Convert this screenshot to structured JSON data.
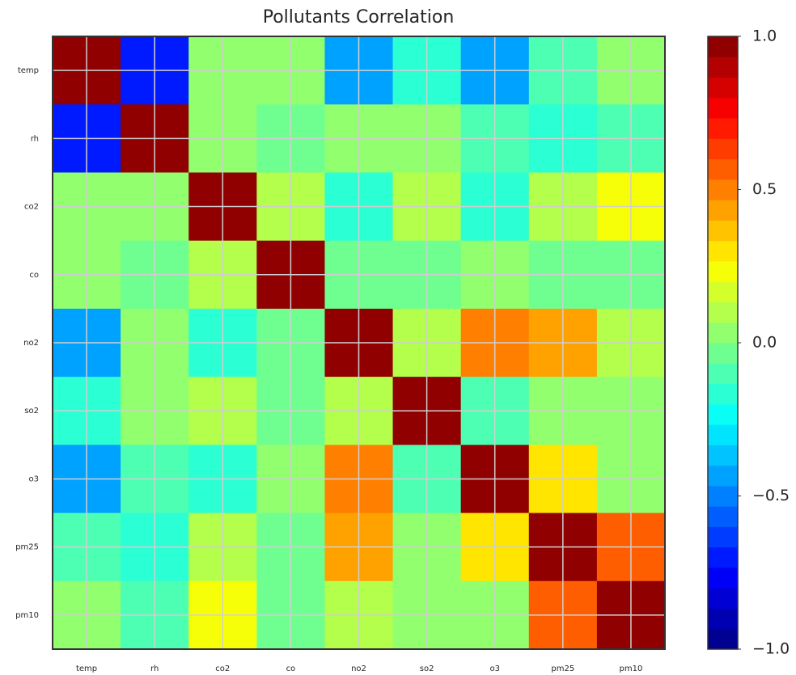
{
  "chart_data": {
    "type": "heatmap",
    "title": "Pollutants Correlation",
    "categories": [
      "temp",
      "rh",
      "co2",
      "co",
      "no2",
      "so2",
      "o3",
      "pm25",
      "pm10"
    ],
    "values": [
      [
        1,
        -0.72,
        0.05,
        0.05,
        -0.45,
        -0.15,
        -0.45,
        -0.08,
        0.0
      ],
      [
        -0.72,
        1,
        0.05,
        -0.03,
        0.05,
        0.05,
        -0.08,
        -0.2,
        -0.1
      ],
      [
        0.05,
        0.05,
        1,
        0.12,
        -0.18,
        0.12,
        -0.18,
        0.08,
        0.22
      ],
      [
        0.05,
        -0.03,
        0.12,
        1,
        -0.03,
        -0.03,
        0.03,
        -0.03,
        -0.03
      ],
      [
        -0.45,
        0.05,
        -0.18,
        -0.03,
        1,
        0.12,
        0.5,
        0.4,
        0.1
      ],
      [
        -0.15,
        0.05,
        0.12,
        -0.03,
        0.12,
        1,
        -0.1,
        0.03,
        0.03
      ],
      [
        -0.45,
        -0.08,
        -0.18,
        0.03,
        0.5,
        -0.1,
        1,
        0.28,
        0.03
      ],
      [
        -0.08,
        -0.2,
        0.08,
        -0.03,
        0.4,
        0.03,
        0.28,
        1,
        0.58
      ],
      [
        0.0,
        -0.1,
        0.22,
        -0.03,
        0.1,
        0.03,
        0.03,
        0.58,
        1
      ]
    ],
    "colormap": "jet",
    "levels": 30,
    "clim": [
      -1,
      1
    ],
    "cticks": [
      {
        "value": 1,
        "label": "1.0"
      },
      {
        "value": 0.5,
        "label": "0.5"
      },
      {
        "value": 0,
        "label": "0.0"
      },
      {
        "value": -0.5,
        "label": "−0.5"
      },
      {
        "value": -1,
        "label": "−1.0"
      }
    ],
    "grid": true
  }
}
